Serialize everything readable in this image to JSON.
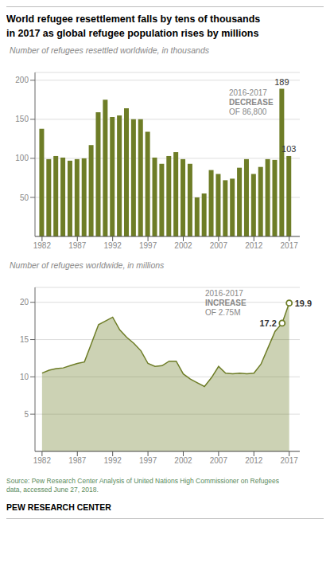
{
  "title": "World refugee resettlement falls by tens of thousands\nin 2017 as global refugee population rises by millions",
  "source": "Source: Pew Research Center Analysis of United Nations High Commissioner on Refugees\ndata, accessed June 27, 2018.",
  "brand": "PEW RESEARCH CENTER",
  "chart_data": [
    {
      "type": "bar",
      "subtitle": "Number of refugees resettled worldwide, in thousands",
      "x": [
        1982,
        1983,
        1984,
        1985,
        1986,
        1987,
        1988,
        1989,
        1990,
        1991,
        1992,
        1993,
        1994,
        1995,
        1996,
        1997,
        1998,
        1999,
        2000,
        2001,
        2002,
        2003,
        2004,
        2005,
        2006,
        2007,
        2008,
        2009,
        2010,
        2011,
        2012,
        2013,
        2014,
        2015,
        2016,
        2017
      ],
      "values": [
        138,
        99,
        103,
        101,
        97,
        99,
        100,
        117,
        159,
        175,
        153,
        155,
        164,
        150,
        150,
        134,
        101,
        93,
        103,
        108,
        99,
        93,
        50,
        55,
        85,
        80,
        72,
        74,
        88,
        99,
        80,
        89,
        99,
        98,
        189,
        103
      ],
      "value_labels": [
        null,
        null,
        null,
        null,
        null,
        null,
        null,
        null,
        null,
        null,
        null,
        null,
        null,
        null,
        null,
        null,
        null,
        null,
        null,
        null,
        null,
        null,
        null,
        null,
        null,
        null,
        null,
        null,
        null,
        null,
        null,
        null,
        null,
        null,
        "189",
        "103"
      ],
      "color": "#6e7d27",
      "xlim": [
        1981,
        2018.5
      ],
      "xticks": [
        1982,
        1987,
        1992,
        1997,
        2002,
        2007,
        2012,
        2017
      ],
      "ylim": [
        0,
        210
      ],
      "yticks": [
        50,
        100,
        150,
        200
      ],
      "grid": true,
      "annotations": [
        "2016-2017",
        "DECREASE",
        "OF 86,800"
      ]
    },
    {
      "type": "area",
      "subtitle": "Number of refugees worldwide, in millions",
      "x": [
        1982,
        1983,
        1984,
        1985,
        1986,
        1987,
        1988,
        1989,
        1990,
        1991,
        1992,
        1993,
        1994,
        1995,
        1996,
        1997,
        1998,
        1999,
        2000,
        2001,
        2002,
        2003,
        2004,
        2005,
        2006,
        2007,
        2008,
        2009,
        2010,
        2011,
        2012,
        2013,
        2014,
        2015,
        2016,
        2017
      ],
      "values": [
        10.5,
        10.9,
        11.1,
        11.2,
        11.5,
        11.8,
        12.0,
        14.5,
        17.0,
        17.5,
        18.0,
        16.3,
        15.3,
        14.5,
        13.5,
        11.8,
        11.4,
        11.5,
        12.1,
        12.1,
        10.4,
        9.7,
        9.2,
        8.7,
        9.9,
        11.4,
        10.5,
        10.4,
        10.5,
        10.4,
        10.5,
        11.7,
        13.9,
        16.1,
        17.2,
        19.9
      ],
      "value_labels": [
        null,
        null,
        null,
        null,
        null,
        null,
        null,
        null,
        null,
        null,
        null,
        null,
        null,
        null,
        null,
        null,
        null,
        null,
        null,
        null,
        null,
        null,
        null,
        null,
        null,
        null,
        null,
        null,
        null,
        null,
        null,
        null,
        null,
        null,
        "17.2",
        "19.9"
      ],
      "color": "#6e7d27",
      "xlim": [
        1981,
        2018.5
      ],
      "xticks": [
        1982,
        1987,
        1992,
        1997,
        2002,
        2007,
        2012,
        2017
      ],
      "ylim": [
        0,
        22
      ],
      "yticks": [
        5,
        10,
        15,
        20
      ],
      "grid": true,
      "annotations": [
        "2016-2017",
        "INCREASE",
        "OF 2.75M"
      ]
    }
  ]
}
